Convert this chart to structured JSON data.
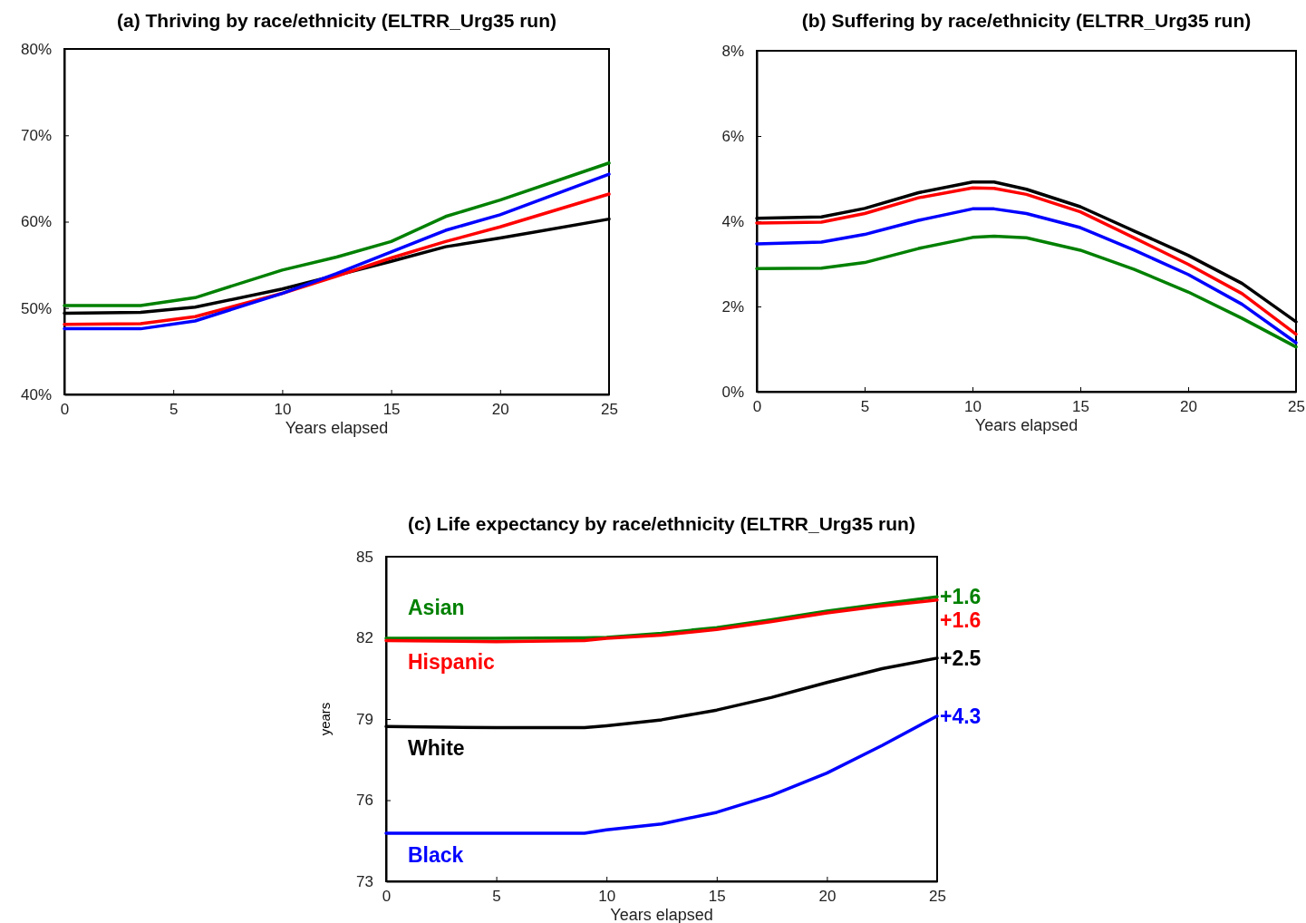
{
  "chart_data": [
    {
      "type": "line",
      "title": "(a) Thriving by race/ethnicity (ELTRR_Urg35 run)",
      "xlabel": "Years elapsed",
      "x": [
        0,
        3.5,
        6,
        10,
        12.5,
        15,
        17.5,
        20,
        25
      ],
      "xlim": [
        0,
        25
      ],
      "xticks": [
        0,
        5,
        10,
        15,
        20,
        25
      ],
      "ylim": [
        40,
        80
      ],
      "yticks": [
        {
          "value": 40,
          "label": "40%"
        },
        {
          "value": 50,
          "label": "50%"
        },
        {
          "value": 60,
          "label": "60%"
        },
        {
          "value": 70,
          "label": "70%"
        },
        {
          "value": 80,
          "label": "80%"
        }
      ],
      "grid": false,
      "marker": "none",
      "line_style": "solid",
      "series": [
        {
          "color": "#008000",
          "values": [
            50.3,
            50.3,
            51.2,
            54.4,
            55.9,
            57.7,
            60.6,
            62.5,
            66.8
          ]
        },
        {
          "color": "#000000",
          "values": [
            49.4,
            49.5,
            50.1,
            52.2,
            53.8,
            55.4,
            57.1,
            58.1,
            60.3
          ]
        },
        {
          "color": "#ff0000",
          "values": [
            48.1,
            48.2,
            49.0,
            51.7,
            53.7,
            55.8,
            57.7,
            59.4,
            63.2
          ]
        },
        {
          "color": "#0000ff",
          "values": [
            47.6,
            47.6,
            48.5,
            51.7,
            54.0,
            56.5,
            59.0,
            60.8,
            65.5
          ]
        }
      ]
    },
    {
      "type": "line",
      "title": "(b) Suffering by race/ethnicity (ELTRR_Urg35 run)",
      "xlabel": "Years elapsed",
      "x": [
        0,
        3,
        5,
        7.5,
        10,
        11,
        12.5,
        15,
        17.5,
        20,
        22.5,
        25
      ],
      "xlim": [
        0,
        25
      ],
      "xticks": [
        0,
        5,
        10,
        15,
        20,
        25
      ],
      "ylim": [
        0,
        8
      ],
      "yticks": [
        {
          "value": 0,
          "label": "0%"
        },
        {
          "value": 2,
          "label": "2%"
        },
        {
          "value": 4,
          "label": "4%"
        },
        {
          "value": 6,
          "label": "6%"
        },
        {
          "value": 8,
          "label": "8%"
        }
      ],
      "grid": false,
      "marker": "none",
      "line_style": "solid",
      "series": [
        {
          "color": "#000000",
          "values": [
            4.07,
            4.1,
            4.3,
            4.67,
            4.92,
            4.92,
            4.75,
            4.34,
            3.77,
            3.2,
            2.54,
            1.64
          ]
        },
        {
          "color": "#ff0000",
          "values": [
            3.96,
            3.98,
            4.18,
            4.55,
            4.78,
            4.77,
            4.63,
            4.22,
            3.61,
            2.99,
            2.3,
            1.35
          ]
        },
        {
          "color": "#0000ff",
          "values": [
            3.47,
            3.51,
            3.69,
            4.02,
            4.29,
            4.29,
            4.18,
            3.85,
            3.32,
            2.75,
            2.05,
            1.15
          ]
        },
        {
          "color": "#008000",
          "values": [
            2.89,
            2.9,
            3.03,
            3.36,
            3.62,
            3.65,
            3.61,
            3.32,
            2.87,
            2.34,
            1.72,
            1.05
          ]
        }
      ]
    },
    {
      "type": "line",
      "title": "(c) Life expectancy by race/ethnicity (ELTRR_Urg35 run)",
      "xlabel": "Years elapsed",
      "ylabel": "years",
      "x": [
        0,
        5,
        9,
        10,
        12.5,
        15,
        17.5,
        20,
        22.5,
        25
      ],
      "xlim": [
        0,
        25
      ],
      "xticks": [
        0,
        5,
        10,
        15,
        20,
        25
      ],
      "ylim": [
        73,
        85
      ],
      "yticks": [
        73,
        76,
        79,
        82,
        85
      ],
      "grid": false,
      "marker": "none",
      "line_style": "solid",
      "series": [
        {
          "name": "Asian",
          "color": "#008000",
          "values": [
            81.98,
            81.98,
            82.0,
            82.02,
            82.17,
            82.38,
            82.67,
            82.99,
            83.26,
            83.52
          ]
        },
        {
          "name": "Hispanic",
          "color": "#ff0000",
          "values": [
            81.9,
            81.86,
            81.9,
            81.98,
            82.1,
            82.31,
            82.6,
            82.92,
            83.18,
            83.4
          ]
        },
        {
          "name": "White",
          "color": "#000000",
          "values": [
            78.72,
            78.68,
            78.68,
            78.75,
            78.97,
            79.33,
            79.8,
            80.35,
            80.86,
            81.25
          ]
        },
        {
          "name": "Black",
          "color": "#0000ff",
          "values": [
            74.78,
            74.78,
            74.78,
            74.9,
            75.12,
            75.55,
            76.18,
            77.0,
            78.02,
            79.11
          ]
        }
      ],
      "annotations": [
        "+1.6",
        "+1.6",
        "+2.5",
        "+4.3"
      ]
    }
  ]
}
